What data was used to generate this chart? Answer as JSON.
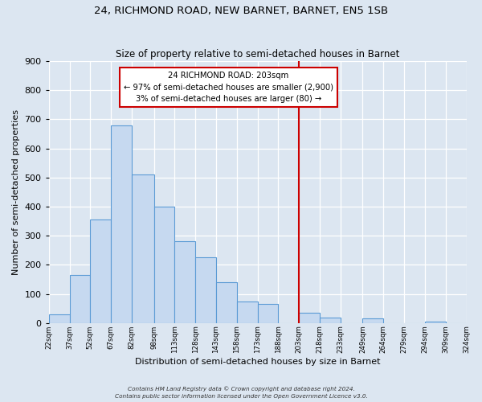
{
  "title": "24, RICHMOND ROAD, NEW BARNET, BARNET, EN5 1SB",
  "subtitle": "Size of property relative to semi-detached houses in Barnet",
  "xlabel": "Distribution of semi-detached houses by size in Barnet",
  "ylabel": "Number of semi-detached properties",
  "bar_edges": [
    22,
    37,
    52,
    67,
    82,
    98,
    113,
    128,
    143,
    158,
    173,
    188,
    203,
    218,
    233,
    249,
    264,
    279,
    294,
    309,
    324
  ],
  "bar_heights": [
    30,
    165,
    355,
    680,
    510,
    400,
    280,
    225,
    140,
    75,
    65,
    0,
    35,
    20,
    0,
    15,
    0,
    0,
    5,
    0
  ],
  "bar_color": "#c6d9f0",
  "bar_edge_color": "#5b9bd5",
  "property_line_x": 203,
  "property_line_color": "#cc0000",
  "annotation_title": "24 RICHMOND ROAD: 203sqm",
  "annotation_line1": "← 97% of semi-detached houses are smaller (2,900)",
  "annotation_line2": "3% of semi-detached houses are larger (80) →",
  "annotation_box_color": "#ffffff",
  "annotation_box_edge": "#cc0000",
  "ylim": [
    0,
    900
  ],
  "yticks": [
    0,
    100,
    200,
    300,
    400,
    500,
    600,
    700,
    800,
    900
  ],
  "tick_labels": [
    "22sqm",
    "37sqm",
    "52sqm",
    "67sqm",
    "82sqm",
    "98sqm",
    "113sqm",
    "128sqm",
    "143sqm",
    "158sqm",
    "173sqm",
    "188sqm",
    "203sqm",
    "218sqm",
    "233sqm",
    "249sqm",
    "264sqm",
    "279sqm",
    "294sqm",
    "309sqm",
    "324sqm"
  ],
  "footer1": "Contains HM Land Registry data © Crown copyright and database right 2024.",
  "footer2": "Contains public sector information licensed under the Open Government Licence v3.0.",
  "bg_color": "#dce6f1",
  "plot_bg_color": "#dce6f1"
}
